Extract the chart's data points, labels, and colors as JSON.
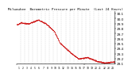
{
  "title": "Milwaukee  Barometric Pressure per Minute  (Last 24 Hours)",
  "background_color": "#ffffff",
  "plot_bg_color": "#ffffff",
  "line_color": "#cc0000",
  "grid_color": "#bbbbbb",
  "y_min": 29.1,
  "y_max": 30.15,
  "y_ticks": [
    29.1,
    29.2,
    29.3,
    29.4,
    29.5,
    29.6,
    29.7,
    29.8,
    29.9,
    30.0,
    30.1
  ],
  "num_points": 1440,
  "x_tick_labels": [
    "1",
    "2",
    "3",
    "4",
    "5",
    "6",
    "7",
    "8",
    "9",
    "10",
    "11",
    "12",
    "13",
    "14",
    "15",
    "16",
    "17",
    "18",
    "19",
    "20",
    "21",
    "22",
    "23",
    "24"
  ]
}
